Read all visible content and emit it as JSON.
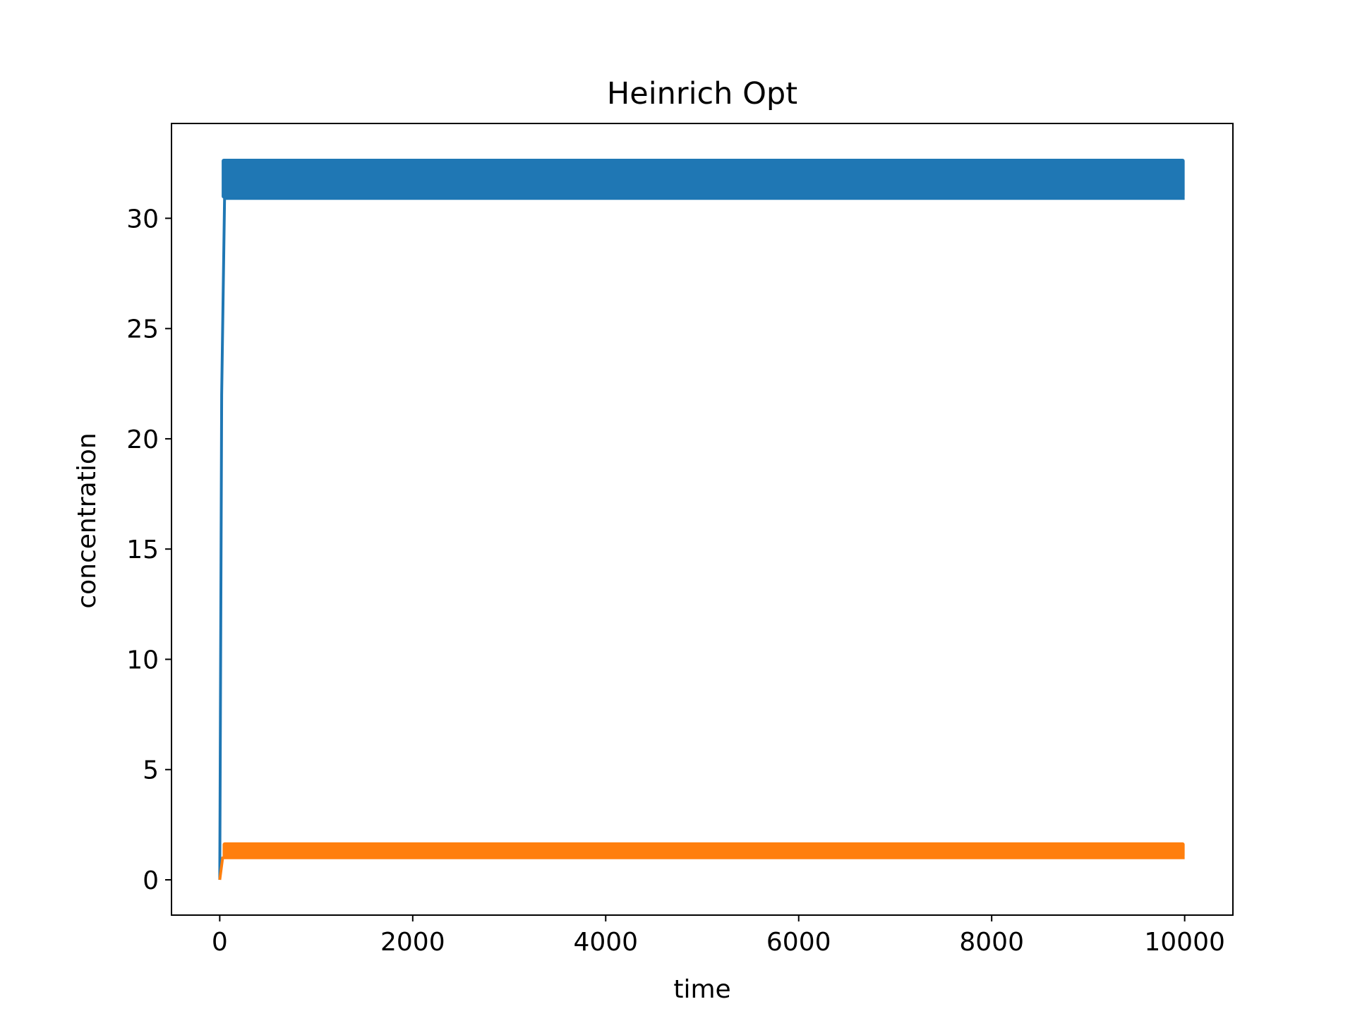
{
  "chart_data": {
    "type": "line",
    "title": "Heinrich Opt",
    "xlabel": "time",
    "ylabel": "concentration",
    "xlim": [
      -500,
      10500
    ],
    "ylim": [
      -1.6,
      34.3
    ],
    "xticks": [
      0,
      2000,
      4000,
      6000,
      8000,
      10000
    ],
    "xtick_labels": [
      "0",
      "2000",
      "4000",
      "6000",
      "8000",
      "10000"
    ],
    "yticks": [
      0,
      5,
      10,
      15,
      20,
      25,
      30
    ],
    "ytick_labels": [
      "0",
      "5",
      "10",
      "15",
      "20",
      "25",
      "30"
    ],
    "grid": false,
    "series": [
      {
        "color": "#1f77b4",
        "description": "rises from 0 to ~31 near t=0, then oscillates rapidly between ~30.9 and ~32.7 until t=10000",
        "x": [
          0,
          20,
          50,
          10000
        ],
        "y": [
          0,
          22,
          30.9,
          30.9
        ],
        "band": {
          "x_start": 20,
          "x_end": 10000,
          "low": 30.9,
          "high": 32.7
        }
      },
      {
        "color": "#ff7f0e",
        "description": "rises from 0 to ~1 near t=0, then oscillates between ~1.0 and ~1.7 until t=10000",
        "x": [
          0,
          30,
          10000
        ],
        "y": [
          0,
          1.0,
          1.0
        ],
        "band": {
          "x_start": 30,
          "x_end": 10000,
          "low": 1.0,
          "high": 1.7
        }
      }
    ]
  }
}
